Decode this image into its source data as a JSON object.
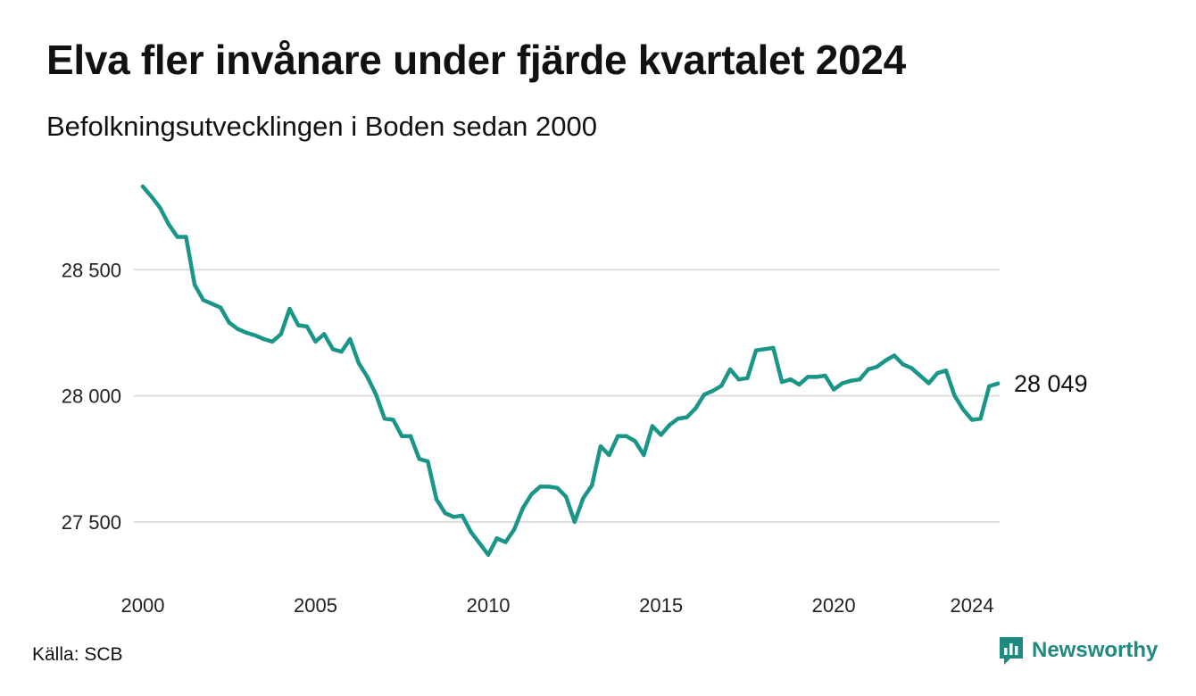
{
  "title": "Elva fler invånare under fjärde kvartalet 2024",
  "subtitle": "Befolkningsutvecklingen i Boden sedan 2000",
  "source": "Källa: SCB",
  "brand": {
    "name": "Newsworthy",
    "icon": "newsworthy-logo-icon",
    "color": "#1e8a80"
  },
  "colors": {
    "line": "#1a9688",
    "grid": "#dddddd",
    "text": "#111111"
  },
  "chart_data": {
    "type": "line",
    "title": "Elva fler invånare under fjärde kvartalet 2024",
    "subtitle": "Befolkningsutvecklingen i Boden sedan 2000",
    "xlabel": "",
    "ylabel": "",
    "xlim": [
      2000,
      2024.75
    ],
    "ylim": [
      27330,
      28830
    ],
    "grid": true,
    "legend": "none",
    "x_ticks": [
      {
        "value": 2000,
        "label": "2000"
      },
      {
        "value": 2005,
        "label": "2005"
      },
      {
        "value": 2010,
        "label": "2010"
      },
      {
        "value": 2015,
        "label": "2015"
      },
      {
        "value": 2020,
        "label": "2020"
      },
      {
        "value": 2024,
        "label": "2024"
      }
    ],
    "y_ticks": [
      {
        "value": 27500,
        "label": "27 500"
      },
      {
        "value": 28000,
        "label": "28 000"
      },
      {
        "value": 28500,
        "label": "28 500"
      }
    ],
    "end_label": "28 049",
    "series": [
      {
        "x": [
          2000,
          2000.25,
          2000.5,
          2000.75,
          2001,
          2001.25,
          2001.5,
          2001.75,
          2002,
          2002.25,
          2002.5,
          2002.75,
          2003,
          2003.25,
          2003.5,
          2003.75,
          2004,
          2004.25,
          2004.5,
          2004.75,
          2005,
          2005.25,
          2005.5,
          2005.75,
          2006,
          2006.25,
          2006.5,
          2006.75,
          2007,
          2007.25,
          2007.5,
          2007.75,
          2008,
          2008.25,
          2008.5,
          2008.75,
          2009,
          2009.25,
          2009.5,
          2009.75,
          2010,
          2010.25,
          2010.5,
          2010.75,
          2011,
          2011.25,
          2011.5,
          2011.75,
          2012,
          2012.25,
          2012.5,
          2012.75,
          2013,
          2013.25,
          2013.5,
          2013.75,
          2014,
          2014.25,
          2014.5,
          2014.75,
          2015,
          2015.25,
          2015.5,
          2015.75,
          2016,
          2016.25,
          2016.5,
          2016.75,
          2017,
          2017.25,
          2017.5,
          2017.75,
          2018,
          2018.25,
          2018.5,
          2018.75,
          2019,
          2019.25,
          2019.5,
          2019.75,
          2020,
          2020.25,
          2020.5,
          2020.75,
          2021,
          2021.25,
          2021.5,
          2021.75,
          2022,
          2022.25,
          2022.5,
          2022.75,
          2023,
          2023.25,
          2023.5,
          2023.75,
          2024,
          2024.25,
          2024.5,
          2024.75
        ],
        "values": [
          28830,
          28790,
          28745,
          28680,
          28630,
          28630,
          28440,
          28380,
          28365,
          28350,
          28290,
          28265,
          28250,
          28240,
          28225,
          28215,
          28245,
          28345,
          28280,
          28275,
          28215,
          28245,
          28185,
          28175,
          28225,
          28130,
          28075,
          28005,
          27910,
          27905,
          27840,
          27840,
          27750,
          27740,
          27590,
          27535,
          27520,
          27525,
          27460,
          27415,
          27370,
          27435,
          27420,
          27470,
          27555,
          27610,
          27640,
          27640,
          27635,
          27600,
          27500,
          27595,
          27645,
          27800,
          27765,
          27840,
          27840,
          27820,
          27765,
          27880,
          27845,
          27885,
          27910,
          27915,
          27950,
          28005,
          28020,
          28040,
          28105,
          28065,
          28070,
          28180,
          28185,
          28190,
          28055,
          28065,
          28045,
          28075,
          28075,
          28080,
          28025,
          28050,
          28060,
          28065,
          28105,
          28115,
          28140,
          28160,
          28125,
          28110,
          28080,
          28050,
          28090,
          28100,
          28000,
          27945,
          27905,
          27910,
          28038,
          28049
        ]
      }
    ]
  }
}
